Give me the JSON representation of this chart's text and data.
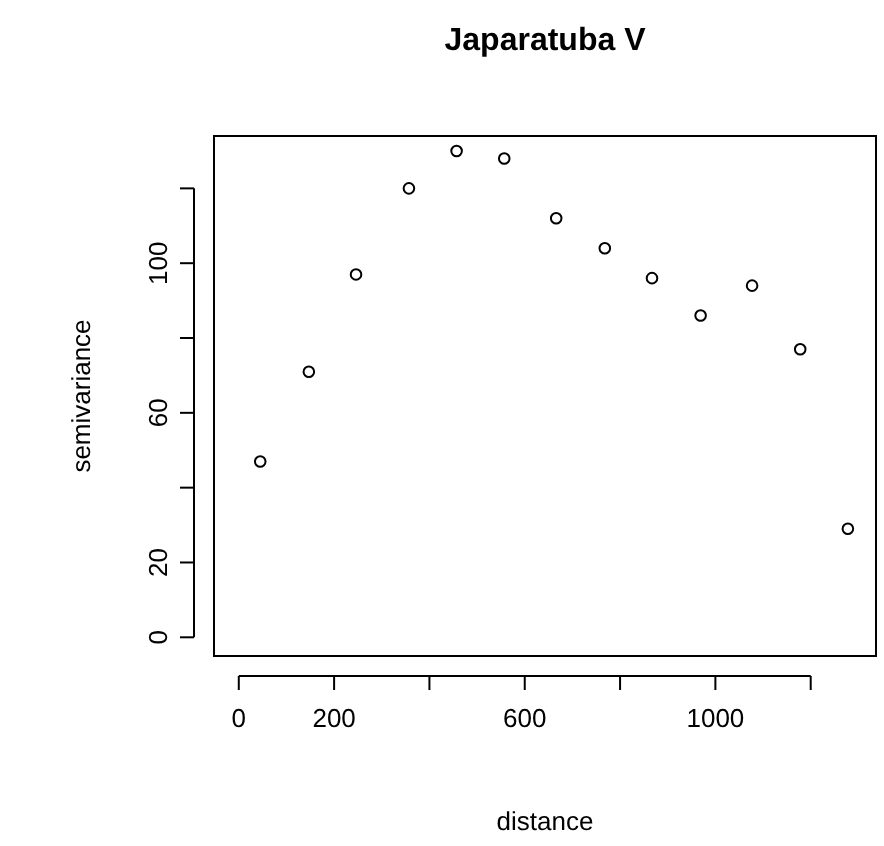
{
  "chart_data": {
    "type": "scatter",
    "title": "Japaratuba V",
    "xlabel": "distance",
    "ylabel": "semivariance",
    "x": [
      45,
      147,
      246,
      357,
      457,
      557,
      666,
      768,
      867,
      969,
      1077,
      1178,
      1278
    ],
    "values": [
      47,
      71,
      97,
      120,
      130,
      128,
      112,
      104,
      96,
      86,
      94,
      77,
      29
    ],
    "color": "#000000",
    "marker": "circle",
    "grid": false,
    "xlim": [
      -52,
      1337
    ],
    "ylim": [
      -5,
      134
    ],
    "xticks": [
      0,
      200,
      {
        "value": 400,
        "label": null
      },
      600,
      {
        "value": 800,
        "label": null
      },
      1000,
      {
        "value": 1200,
        "label": null
      }
    ],
    "yticks": [
      0,
      20,
      {
        "value": 40,
        "label": null
      },
      60,
      {
        "value": 80,
        "label": null
      },
      100,
      {
        "value": 120,
        "label": null
      }
    ]
  }
}
